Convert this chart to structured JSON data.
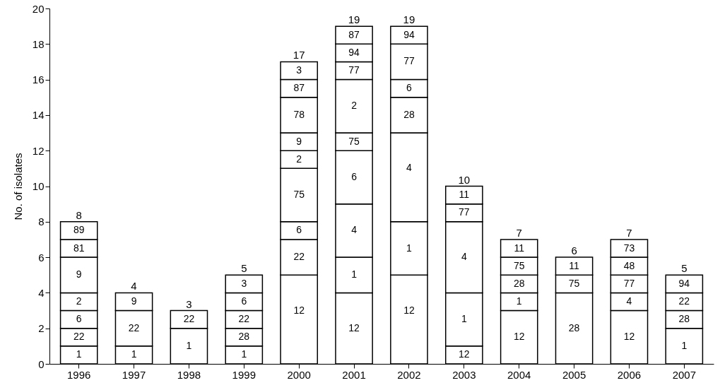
{
  "chart_data": {
    "type": "bar",
    "stacked": true,
    "ylabel": "No. of isolates",
    "ylim": [
      0,
      20
    ],
    "yticks": [
      0,
      2,
      4,
      6,
      8,
      10,
      12,
      14,
      16,
      18,
      20
    ],
    "categories": [
      "1996",
      "1997",
      "1998",
      "1999",
      "2000",
      "2001",
      "2002",
      "2003",
      "2004",
      "2005",
      "2006",
      "2007"
    ],
    "series": [
      {
        "color": "#ffffff",
        "values": [
          1,
          1,
          2,
          1,
          5,
          4,
          5,
          1,
          3,
          4,
          3,
          2
        ]
      },
      {
        "color": "#ffffff",
        "values": [
          1,
          2,
          1,
          1,
          2,
          2,
          3,
          3,
          1,
          1,
          1,
          1
        ]
      },
      {
        "color": "#ffffff",
        "values": [
          1,
          1,
          null,
          1,
          1,
          3,
          5,
          4,
          1,
          1,
          1,
          1
        ]
      },
      {
        "color": "#ffffff",
        "values": [
          1,
          null,
          null,
          1,
          3,
          3,
          2,
          1,
          1,
          null,
          1,
          1
        ]
      },
      {
        "color": "#ffffff",
        "values": [
          2,
          null,
          null,
          1,
          1,
          1,
          1,
          1,
          1,
          null,
          1,
          null
        ]
      },
      {
        "color": "#ffffff",
        "values": [
          1,
          null,
          null,
          null,
          1,
          3,
          2,
          null,
          null,
          null,
          null,
          null
        ]
      },
      {
        "color": "#ffffff",
        "values": [
          1,
          null,
          null,
          null,
          2,
          1,
          1,
          null,
          null,
          null,
          null,
          null
        ]
      },
      {
        "color": "#ffffff",
        "values": [
          null,
          null,
          null,
          null,
          1,
          1,
          null,
          null,
          null,
          null,
          null,
          null
        ]
      },
      {
        "color": "#ffffff",
        "values": [
          null,
          null,
          null,
          null,
          1,
          1,
          null,
          null,
          null,
          null,
          null,
          null
        ]
      }
    ],
    "annotations": [
      {
        "text": "1",
        "x": "1996",
        "y": 1
      },
      {
        "text": "22",
        "x": "1996",
        "y": 2
      },
      {
        "text": "6",
        "x": "1996",
        "y": 3
      },
      {
        "text": "2",
        "x": "1996",
        "y": 4
      },
      {
        "text": "9",
        "x": "1996",
        "y": 6
      },
      {
        "text": "81",
        "x": "1996",
        "y": 7
      },
      {
        "text": "89",
        "x": "1996",
        "y": 8
      },
      {
        "text": "1",
        "x": "1997",
        "y": 1
      },
      {
        "text": "22",
        "x": "1997",
        "y": 3
      },
      {
        "text": "9",
        "x": "1997",
        "y": 4
      },
      {
        "text": "1",
        "x": "1998",
        "y": 2
      },
      {
        "text": "22",
        "x": "1998",
        "y": 3
      },
      {
        "text": "1",
        "x": "1999",
        "y": 1
      },
      {
        "text": "28",
        "x": "1999",
        "y": 2
      },
      {
        "text": "22",
        "x": "1999",
        "y": 3
      },
      {
        "text": "6",
        "x": "1999",
        "y": 4
      },
      {
        "text": "3",
        "x": "1999",
        "y": 5
      },
      {
        "text": "12",
        "x": "2000",
        "y": 5
      },
      {
        "text": "22",
        "x": "2000",
        "y": 7
      },
      {
        "text": "6",
        "x": "2000",
        "y": 8
      },
      {
        "text": "75",
        "x": "2000",
        "y": 11
      },
      {
        "text": "2",
        "x": "2000",
        "y": 12
      },
      {
        "text": "9",
        "x": "2000",
        "y": 13
      },
      {
        "text": "78",
        "x": "2000",
        "y": 15
      },
      {
        "text": "87",
        "x": "2000",
        "y": 16
      },
      {
        "text": "3",
        "x": "2000",
        "y": 17
      },
      {
        "text": "12",
        "x": "2001",
        "y": 4
      },
      {
        "text": "1",
        "x": "2001",
        "y": 6
      },
      {
        "text": "4",
        "x": "2001",
        "y": 9
      },
      {
        "text": "6",
        "x": "2001",
        "y": 12
      },
      {
        "text": "75",
        "x": "2001",
        "y": 13
      },
      {
        "text": "2",
        "x": "2001",
        "y": 16
      },
      {
        "text": "77",
        "x": "2001",
        "y": 17
      },
      {
        "text": "94",
        "x": "2001",
        "y": 18
      },
      {
        "text": "87",
        "x": "2001",
        "y": 19
      },
      {
        "text": "12",
        "x": "2002",
        "y": 5
      },
      {
        "text": "1",
        "x": "2002",
        "y": 8
      },
      {
        "text": "4",
        "x": "2002",
        "y": 13
      },
      {
        "text": "28",
        "x": "2002",
        "y": 15
      },
      {
        "text": "6",
        "x": "2002",
        "y": 16
      },
      {
        "text": "77",
        "x": "2002",
        "y": 18
      },
      {
        "text": "94",
        "x": "2002",
        "y": 19
      },
      {
        "text": "12",
        "x": "2003",
        "y": 1
      },
      {
        "text": "1",
        "x": "2003",
        "y": 4
      },
      {
        "text": "4",
        "x": "2003",
        "y": 8
      },
      {
        "text": "77",
        "x": "2003",
        "y": 9
      },
      {
        "text": "11",
        "x": "2003",
        "y": 10
      },
      {
        "text": "12",
        "x": "2004",
        "y": 3
      },
      {
        "text": "1",
        "x": "2004",
        "y": 4
      },
      {
        "text": "28",
        "x": "2004",
        "y": 5
      },
      {
        "text": "75",
        "x": "2004",
        "y": 6
      },
      {
        "text": "11",
        "x": "2004",
        "y": 7
      },
      {
        "text": "28",
        "x": "2005",
        "y": 4
      },
      {
        "text": "75",
        "x": "2005",
        "y": 5
      },
      {
        "text": "11",
        "x": "2005",
        "y": 6
      },
      {
        "text": "12",
        "x": "2006",
        "y": 3
      },
      {
        "text": "4",
        "x": "2006",
        "y": 4
      },
      {
        "text": "77",
        "x": "2006",
        "y": 5
      },
      {
        "text": "48",
        "x": "2006",
        "y": 6
      },
      {
        "text": "73",
        "x": "2006",
        "y": 7
      },
      {
        "text": "1",
        "x": "2007",
        "y": 2
      },
      {
        "text": "28",
        "x": "2007",
        "y": 3
      },
      {
        "text": "22",
        "x": "2007",
        "y": 4
      },
      {
        "text": "94",
        "x": "2007",
        "y": 5
      }
    ],
    "totals": [
      "8",
      "4",
      "3",
      "5",
      "17",
      "19",
      "19",
      "10",
      "7",
      "6",
      "7",
      "5"
    ]
  }
}
